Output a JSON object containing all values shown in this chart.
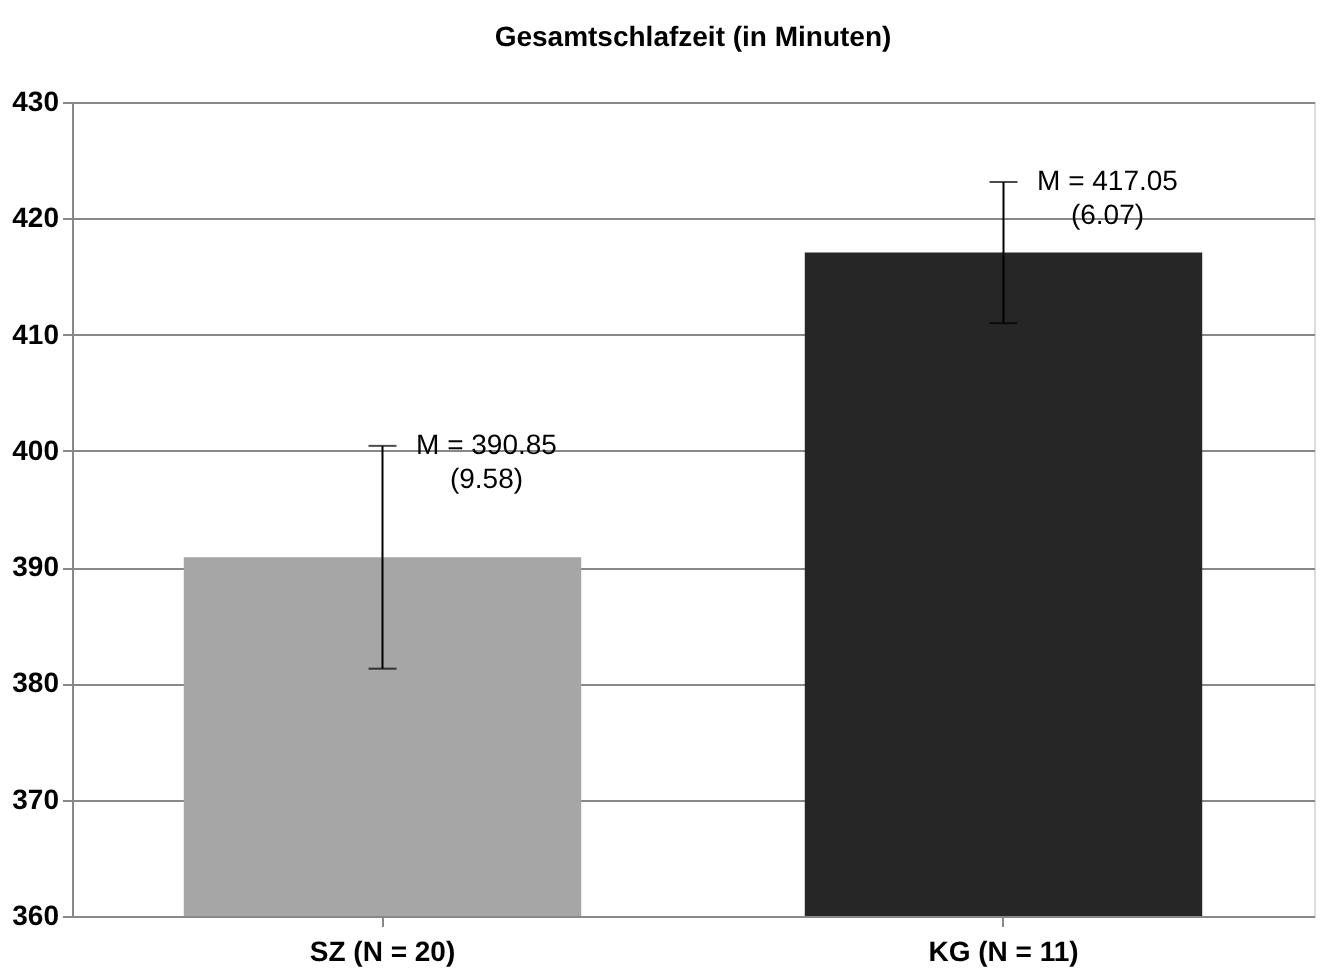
{
  "chart_data": {
    "type": "bar",
    "title": "Gesamtschlafzeit (in Minuten)",
    "categories": [
      "SZ (N = 20)",
      "KG (N = 11)"
    ],
    "values": [
      390.85,
      417.05
    ],
    "colors": [
      "#a6a6a6",
      "#262626"
    ],
    "errors": [
      9.58,
      6.07
    ],
    "value_labels": [
      "M = 390.85\n(9.58)",
      "M = 417.05\n(6.07)"
    ],
    "ylim": [
      360,
      430
    ],
    "yticks": [
      360,
      370,
      380,
      390,
      400,
      410,
      420,
      430
    ],
    "grid": "y",
    "legend": false
  }
}
